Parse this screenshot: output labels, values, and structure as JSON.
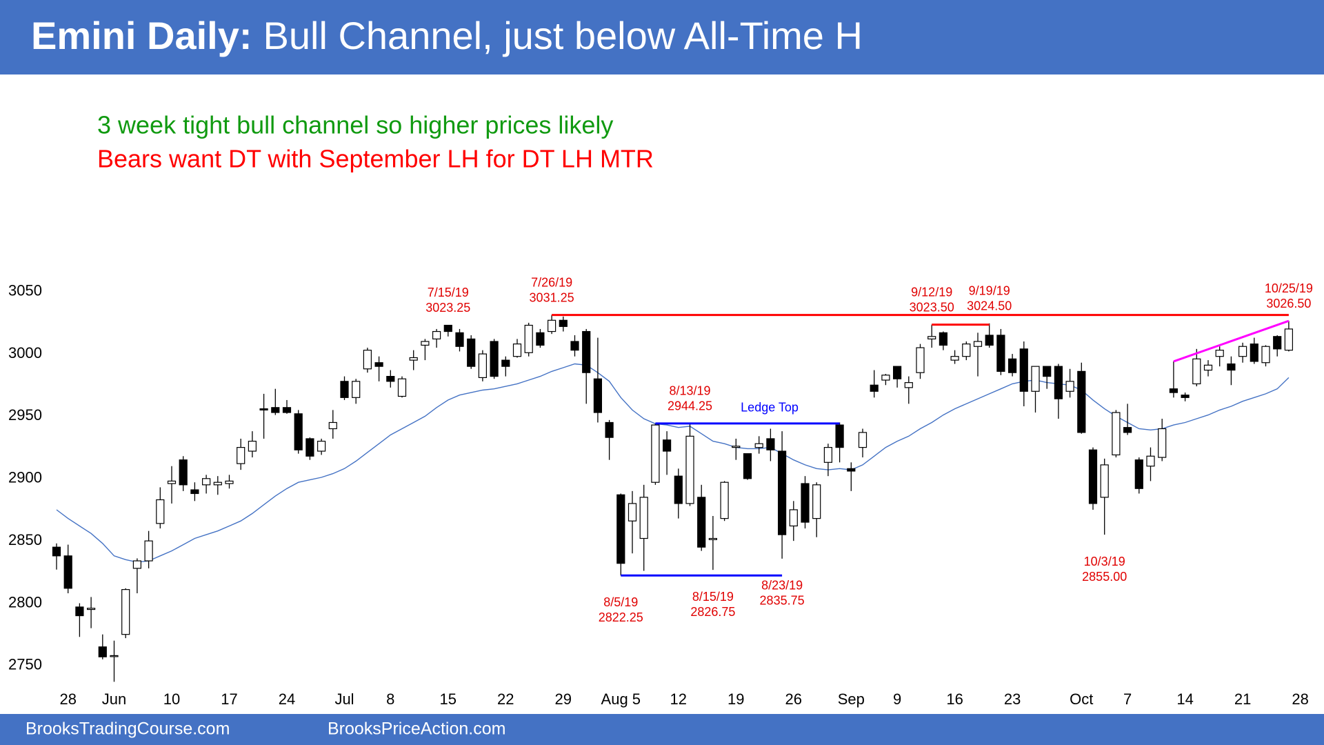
{
  "chart_data": {
    "type": "candlestick",
    "title_bold": "Emini Daily:",
    "title": "Bull Channel, just below All-Time H",
    "notes": [
      {
        "text": "3 week tight bull channel so higher prices likely",
        "color": "#109a10"
      },
      {
        "text": "Bears want DT with September LH for DT LH MTR",
        "color": "#ff0000"
      }
    ],
    "ylim": [
      2730,
      3080
    ],
    "yticks": [
      2750,
      2800,
      2850,
      2900,
      2950,
      3000,
      3050
    ],
    "grid": false,
    "up_color": "#ffffff",
    "down_color": "#000000",
    "categories": [
      null,
      "28",
      null,
      null,
      null,
      "Jun",
      null,
      null,
      null,
      null,
      "10",
      null,
      null,
      null,
      null,
      "17",
      null,
      null,
      null,
      null,
      "24",
      null,
      null,
      null,
      null,
      "Jul",
      null,
      null,
      null,
      "8",
      null,
      null,
      null,
      null,
      "15",
      null,
      null,
      null,
      null,
      "22",
      null,
      null,
      null,
      null,
      "29",
      null,
      null,
      null,
      null,
      "Aug 5",
      null,
      null,
      null,
      null,
      "12",
      null,
      null,
      null,
      null,
      "19",
      null,
      null,
      null,
      null,
      "26",
      null,
      null,
      null,
      null,
      "Sep",
      null,
      null,
      null,
      "9",
      null,
      null,
      null,
      null,
      "16",
      null,
      null,
      null,
      null,
      "23",
      null,
      null,
      null,
      null,
      null,
      "Oct",
      null,
      null,
      null,
      "7",
      null,
      null,
      null,
      null,
      "14",
      null,
      null,
      null,
      null,
      "21",
      null,
      null,
      null,
      null,
      "28"
    ],
    "open": [
      2845,
      2838,
      2797,
      2795,
      2765,
      2758,
      2775,
      2828,
      2834,
      2864,
      2896,
      2915,
      2891,
      2895,
      2895,
      2896,
      2912,
      2922,
      2956,
      2957,
      2957,
      2952,
      2932,
      2922,
      2940,
      2978,
      2965,
      2988,
      2993,
      2982,
      2966,
      2995,
      3007,
      3012,
      3023,
      3017,
      3012,
      2981,
      3010,
      2995,
      2998,
      3001,
      3017,
      3018,
      3027,
      3010,
      3018,
      2980,
      2945,
      2887,
      2866,
      2852,
      2897,
      2931,
      2902,
      2880,
      2885,
      2851,
      2868,
      2925,
      2920,
      2925,
      2932,
      2922,
      2862,
      2896,
      2868,
      2913,
      2943,
      2908,
      2925,
      2975,
      2979,
      2990,
      2973,
      2985,
      3012,
      3017,
      2995,
      2998,
      3006,
      3015,
      3015,
      2996,
      3004,
      2970,
      2990,
      2990,
      2970,
      2986,
      2923,
      2885,
      2919,
      2941,
      2915,
      2910,
      2917,
      2972,
      2967,
      2976,
      2987,
      2998,
      2992,
      2998,
      3008,
      2993,
      3014,
      3003,
      null
    ],
    "high": [
      2848,
      2847,
      2800,
      2805,
      2775,
      2770,
      2812,
      2836,
      2858,
      2893,
      2910,
      2918,
      2897,
      2903,
      2902,
      2903,
      2932,
      2938,
      2968,
      2972,
      2963,
      2955,
      2933,
      2932,
      2955,
      2982,
      2980,
      3005,
      2998,
      2987,
      2982,
      3003,
      3012,
      3020,
      3023.25,
      3020,
      3015,
      3003,
      3012,
      2998,
      3012,
      3025,
      3020,
      3031.25,
      3030,
      3015,
      3020,
      3013,
      2947,
      2888,
      2890,
      2895,
      2944,
      2938,
      2908,
      2944.25,
      2895,
      2870,
      2898,
      2932,
      2920,
      2934,
      2940,
      2938,
      2882,
      2902,
      2897,
      2928,
      2945,
      2913,
      2940,
      2987,
      2984,
      2990,
      2982,
      3008,
      3023.5,
      3018,
      3003,
      3010,
      3017,
      3024.5,
      3020,
      3000,
      3010,
      2990,
      2990,
      2992,
      2988,
      2993,
      2925,
      2916,
      2955,
      2960,
      2917,
      2925,
      2948,
      2994,
      2969,
      3004,
      2995,
      3006,
      2998,
      3009,
      3013,
      3007,
      3015,
      3026.5,
      null
    ],
    "low": [
      2827,
      2808,
      2773,
      2780,
      2755,
      2737,
      2772,
      2808,
      2828,
      2860,
      2880,
      2890,
      2882,
      2888,
      2887,
      2892,
      2907,
      2917,
      2932,
      2951,
      2952,
      2920,
      2915,
      2919,
      2932,
      2963,
      2960,
      2985,
      2978,
      2973,
      2965,
      2987,
      2995,
      3005,
      3014,
      3002,
      2988,
      2978,
      2980,
      2982,
      2997,
      2998,
      3005,
      3016,
      3018,
      2998,
      2960,
      2945,
      2915,
      2822.25,
      2840,
      2826,
      2895,
      2903,
      2868,
      2878,
      2842,
      2826.75,
      2866,
      2915,
      2899,
      2920,
      2914,
      2835.75,
      2850,
      2860,
      2853,
      2902,
      2913,
      2890,
      2917,
      2965,
      2975,
      2973,
      2960,
      2980,
      3005,
      3003,
      2992,
      2995,
      2982,
      3005,
      2983,
      2982,
      2958,
      2953,
      2972,
      2948,
      2965,
      2936,
      2875,
      2855,
      2917,
      2935,
      2888,
      2898,
      2914,
      2965,
      2962,
      2974,
      2982,
      2990,
      2975,
      2993,
      2992,
      2990,
      2998,
      3002,
      null
    ],
    "close": [
      2838,
      2812,
      2790,
      2796,
      2757,
      2758,
      2811,
      2834,
      2850,
      2883,
      2898,
      2895,
      2888,
      2900,
      2897,
      2898,
      2925,
      2930,
      2955,
      2953,
      2953,
      2923,
      2918,
      2930,
      2945,
      2965,
      2978,
      3003,
      2990,
      2978,
      2980,
      2997,
      3010,
      3018,
      3018,
      3006,
      2990,
      3000,
      2982,
      2990,
      3008,
      3023,
      3007,
      3027,
      3022,
      3003,
      2985,
      2953,
      2933,
      2832,
      2880,
      2885,
      2943,
      2922,
      2880,
      2934,
      2845,
      2852,
      2897,
      2926,
      2900,
      2928,
      2923,
      2855,
      2875,
      2865,
      2895,
      2925,
      2925,
      2906,
      2937,
      2970,
      2983,
      2980,
      2977,
      3005,
      3014,
      3007,
      2998,
      3008,
      3010,
      3007,
      2986,
      2985,
      2970,
      2990,
      2982,
      2964,
      2978,
      2937,
      2880,
      2911,
      2953,
      2937,
      2892,
      2918,
      2940,
      2969,
      2965,
      2996,
      2991,
      3003,
      2987,
      3006,
      2994,
      3006,
      3004,
      3020,
      null
    ],
    "ma": {
      "color": "#4472c4",
      "values": [
        2875,
        2868,
        2862,
        2856,
        2848,
        2838,
        2835,
        2833,
        2834,
        2838,
        2842,
        2847,
        2852,
        2855,
        2858,
        2862,
        2866,
        2872,
        2879,
        2886,
        2892,
        2897,
        2899,
        2901,
        2904,
        2908,
        2914,
        2921,
        2928,
        2935,
        2940,
        2945,
        2950,
        2957,
        2963,
        2967,
        2969,
        2971,
        2972,
        2974,
        2976,
        2979,
        2982,
        2986,
        2989,
        2992,
        2991,
        2985,
        2978,
        2965,
        2955,
        2948,
        2944,
        2943,
        2941,
        2942,
        2936,
        2930,
        2928,
        2925,
        2924,
        2924,
        2925,
        2920,
        2915,
        2911,
        2908,
        2907,
        2908,
        2907,
        2911,
        2918,
        2925,
        2930,
        2934,
        2940,
        2945,
        2951,
        2956,
        2960,
        2964,
        2968,
        2972,
        2976,
        2978,
        2979,
        2977,
        2976,
        2975,
        2971,
        2963,
        2956,
        2950,
        2945,
        2940,
        2939,
        2940,
        2943,
        2945,
        2948,
        2951,
        2955,
        2958,
        2962,
        2965,
        2968,
        2972,
        2981,
        null
      ]
    },
    "lines": [
      {
        "color": "#ff0000",
        "from": 43,
        "to": 107,
        "values": [
          3031.25,
          3031.25
        ]
      },
      {
        "color": "#ff0000",
        "from": 76,
        "to": 81,
        "values": [
          3023.5,
          3023.5
        ]
      },
      {
        "color": "#0000ff",
        "from": 52,
        "to": 68,
        "values": [
          2944.25,
          2944.25
        ],
        "label": "Ledge Top"
      },
      {
        "color": "#0000ff",
        "from": 49,
        "to": 63,
        "values": [
          2822.25,
          2822.25
        ]
      },
      {
        "color": "#ff00ff",
        "from": 97,
        "to": 107,
        "values": [
          2994,
          3026.5
        ]
      }
    ],
    "annotations": [
      {
        "date": "7/15/19",
        "value": 3023.25,
        "at": 34,
        "side": "above"
      },
      {
        "date": "7/26/19",
        "value": 3031.25,
        "at": 43,
        "side": "above"
      },
      {
        "date": "8/13/19",
        "value": 2944.25,
        "at": 55,
        "side": "above"
      },
      {
        "date": "9/12/19",
        "value": {
          "value": 3023.5,
          "label": "3023.50"
        },
        "at": 76,
        "side": "above"
      },
      {
        "date": "9/19/19",
        "value": {
          "value": 3024.5,
          "label": "3024.50"
        },
        "at": 81,
        "side": "above"
      },
      {
        "date": "10/25/19",
        "value": {
          "value": 3026.5,
          "label": "3026.50"
        },
        "at": 107,
        "side": "above"
      },
      {
        "date": "8/5/19",
        "value": 2822.25,
        "at": 49,
        "side": "below"
      },
      {
        "date": "8/15/19",
        "value": 2826.75,
        "at": 57,
        "side": "below"
      },
      {
        "date": "8/23/19",
        "value": 2835.75,
        "at": 63,
        "side": "below"
      },
      {
        "date": "10/3/19",
        "value": {
          "value": 2855,
          "label": "2855.00"
        },
        "at": 91,
        "side": "below"
      }
    ]
  },
  "footer": [
    "BrooksTradingCourse.com",
    "BrooksPriceAction.com"
  ]
}
